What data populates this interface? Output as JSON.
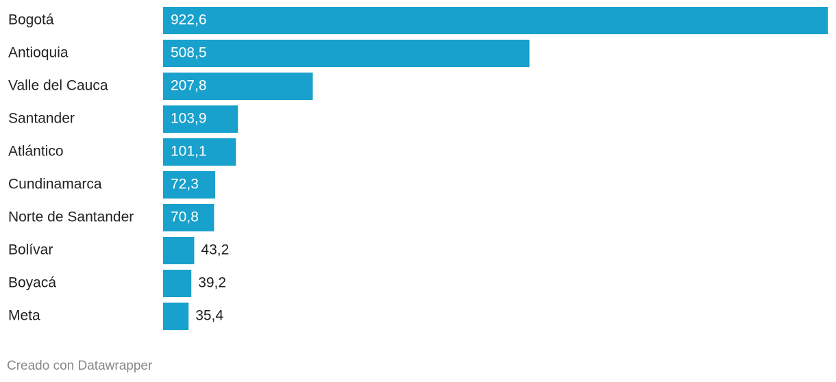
{
  "chart_data": {
    "type": "bar",
    "orientation": "horizontal",
    "color": "#18a1cd",
    "categories": [
      "Bogotá",
      "Antioquia",
      "Valle del Cauca",
      "Santander",
      "Atlántico",
      "Cundinamarca",
      "Norte de Santander",
      "Bolívar",
      "Boyacá",
      "Meta"
    ],
    "values": [
      922.6,
      508.5,
      207.8,
      103.9,
      101.1,
      72.3,
      70.8,
      43.2,
      39.2,
      35.4
    ],
    "value_labels": [
      "922,6",
      "508,5",
      "207,8",
      "103,9",
      "101,1",
      "72,3",
      "70,8",
      "43,2",
      "39,2",
      "35,4"
    ]
  },
  "footer": "Creado con Datawrapper"
}
